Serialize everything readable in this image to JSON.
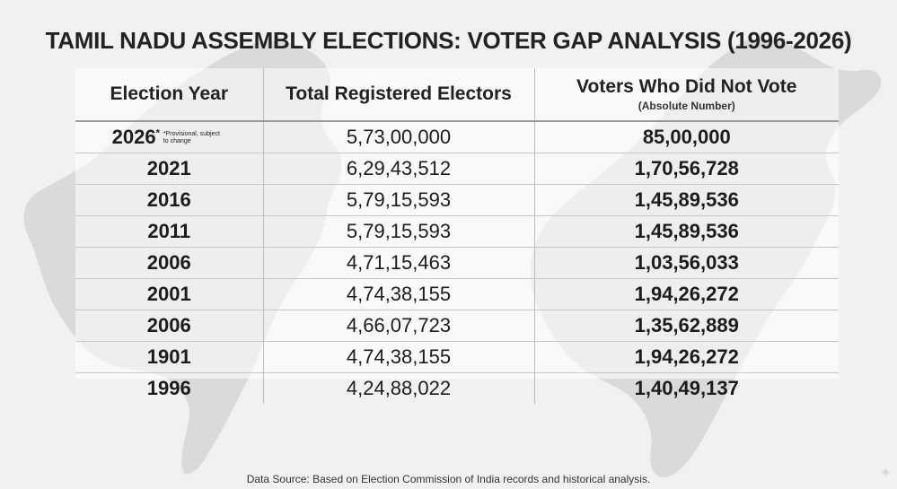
{
  "title": "TAMIL NADU ASSEMBLY ELECTIONS: VOTER GAP ANALYSIS (1996-2026)",
  "table": {
    "headers": {
      "year": "Election Year",
      "total": "Total Registered Electors",
      "nonvote": "Voters Who Did Not Vote",
      "nonvote_sub": "(Absolute Number)"
    },
    "rows": [
      {
        "year": "2026",
        "marker": "*",
        "note": "*Provisional, subject to change",
        "total": "5,73,00,000",
        "nonvote": "85,00,000"
      },
      {
        "year": "2021",
        "total": "6,29,43,512",
        "nonvote": "1,70,56,728"
      },
      {
        "year": "2016",
        "total": "5,79,15,593",
        "nonvote": "1,45,89,536"
      },
      {
        "year": "2011",
        "total": "5,79,15,593",
        "nonvote": "1,45,89,536"
      },
      {
        "year": "2006",
        "total": "4,71,15,463",
        "nonvote": "1,03,56,033"
      },
      {
        "year": "2001",
        "total": "4,74,38,155",
        "nonvote": "1,94,26,272"
      },
      {
        "year": "2006",
        "total": "4,66,07,723",
        "nonvote": "1,35,62,889"
      },
      {
        "year": "1901",
        "total": "4,74,38,155",
        "nonvote": "1,94,26,272"
      },
      {
        "year": "1996",
        "total": "4,24,88,022",
        "nonvote": "1,40,49,137"
      }
    ]
  },
  "source": "Data Source: Based on Election Commission of India records and historical analysis.",
  "colors": {
    "background": "#f1f1f1",
    "map": "#dcdcdc",
    "text": "#1c1c1c"
  },
  "icons": {
    "background_map": "tamil-nadu-map-icon",
    "corner": "sparkle-icon"
  }
}
